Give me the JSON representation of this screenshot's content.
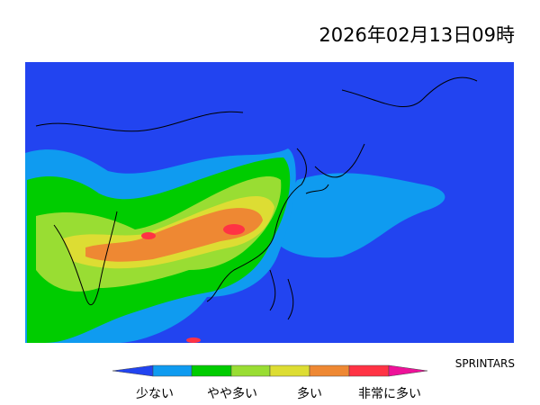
{
  "timestamp": "2026年02月13日09時",
  "credit": "SPRINTARS",
  "legend": {
    "labels": [
      "少ない",
      "やや多い",
      "多い",
      "非常に多い"
    ]
  }
}
